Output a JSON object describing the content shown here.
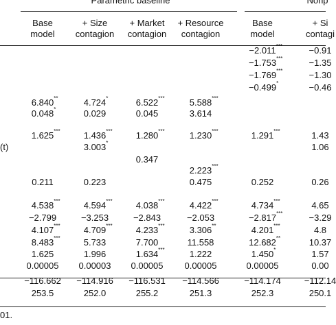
{
  "table": {
    "groups": [
      "Parametric baseline",
      "Nonp"
    ],
    "columns": [
      "Base\nmodel",
      "+ Size\ncontagion",
      "+ Market\ncontagion",
      "+ Resource\ncontagion",
      "Base\nmodel",
      "+ Si\ncontagi"
    ],
    "rows": [
      [
        null,
        null,
        null,
        null,
        null,
        "−2.011***",
        "−0.91"
      ],
      [
        null,
        null,
        null,
        null,
        null,
        "−1.753***",
        "−1.35"
      ],
      [
        null,
        null,
        null,
        null,
        null,
        "−1.769***",
        "−1.30"
      ],
      [
        null,
        null,
        null,
        null,
        null,
        "−0.499*",
        "−0.46"
      ],
      [
        null,
        "6.840**",
        "4.724*",
        "6.522***",
        "5.588***",
        null,
        null
      ],
      [
        null,
        "0.048*",
        "0.029",
        "0.045",
        "3.614",
        null,
        null
      ],
      [
        null,
        "1.625***",
        "1.436***",
        "1.280***",
        "1.230***",
        "1.291***",
        "1.43"
      ],
      [
        "(t)",
        null,
        "3.003*",
        null,
        null,
        null,
        "1.06"
      ],
      [
        null,
        null,
        null,
        "0.347",
        null,
        null,
        null
      ],
      [
        null,
        null,
        null,
        null,
        "2.223***",
        null,
        null
      ],
      [
        null,
        "0.211",
        "0.223",
        null,
        "0.475",
        "0.252",
        "0.26"
      ],
      [
        null,
        "4.538***",
        "4.594***",
        "4.038***",
        "4.422***",
        "4.734***",
        "4.65"
      ],
      [
        null,
        "−2.799",
        "−3.253",
        "−2.843",
        "−2.053",
        "−2.817***",
        "−3.29"
      ],
      [
        null,
        "4.107***",
        "4.709***",
        "4.233***",
        "3.306**",
        "4.201***",
        "4.8"
      ],
      [
        null,
        "8.483***",
        "5.733",
        "7.700",
        "11.558",
        "12.682**",
        "10.37"
      ],
      [
        null,
        "1.625",
        "1.996",
        "1.634***",
        "1.222",
        "1.450*",
        "1.57"
      ],
      [
        null,
        "0.00005",
        "0.00003",
        "0.00005",
        "0.00005",
        "0.00005",
        "0.00"
      ],
      [
        null,
        "−116.662",
        "−114.916",
        "−116.531",
        "−114.566",
        "−114.174",
        "−112.14"
      ],
      [
        null,
        "253.5",
        "252.0",
        "255.2",
        "251.3",
        "252.3",
        "250.1"
      ]
    ],
    "footnote": "01."
  }
}
